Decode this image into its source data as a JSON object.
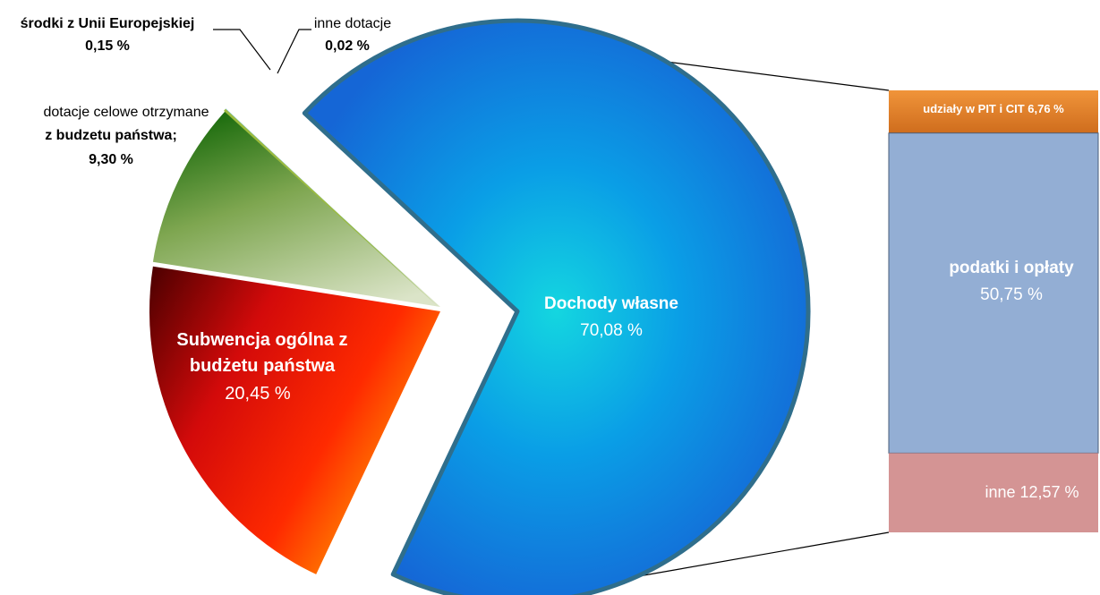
{
  "chart_data": [
    {
      "type": "pie",
      "slices": [
        {
          "key": "dochody",
          "name": "Dochody własne",
          "value": 70.08,
          "label": "70,08 %",
          "color": "#1f86e0"
        },
        {
          "key": "subwencja",
          "name_lines": [
            "Subwencja ogólna z",
            "budżetu państwa"
          ],
          "value": 20.45,
          "label": "20,45 %",
          "color": "#e01010"
        },
        {
          "key": "dotacje_celowe",
          "name_lines": [
            "dotacje celowe otrzymane",
            "z budzetu państwa;"
          ],
          "value": 9.3,
          "label": "9,30 %",
          "color": "#3f8a22"
        },
        {
          "key": "ue",
          "name": "środki z Unii Europejskiej",
          "value": 0.15,
          "label": "0,15 %",
          "color": "#9dbb3f"
        },
        {
          "key": "inne_dotacje",
          "name": "inne dotacje",
          "value": 0.02,
          "label": "0,02 %",
          "color": "#4bacc6"
        }
      ]
    },
    {
      "type": "bar",
      "stacked": true,
      "segments": [
        {
          "name": "udziały w PIT i CIT",
          "value": 6.76,
          "label": "6,76 %",
          "color": "#e07f2c"
        },
        {
          "name": "podatki i opłaty",
          "value": 50.75,
          "label": "50,75 %",
          "color": "#93aed4"
        },
        {
          "name": "inne",
          "value": 12.57,
          "label": "12,57 %",
          "color": "#d49494"
        }
      ]
    }
  ]
}
